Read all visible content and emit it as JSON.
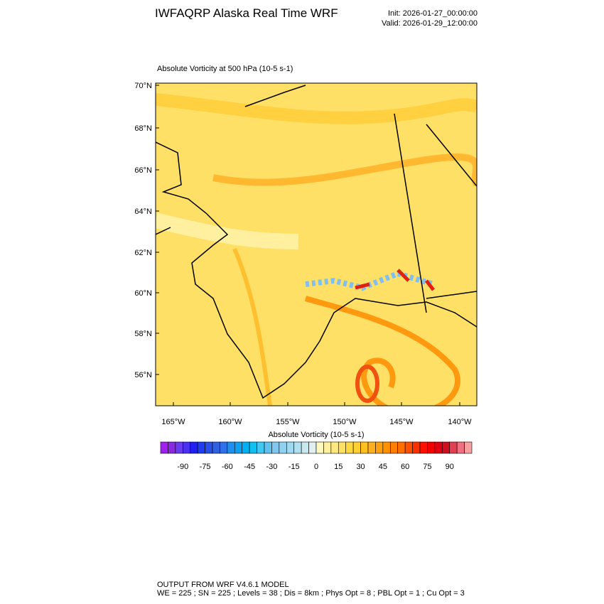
{
  "header": {
    "title": "IWFAQRP Alaska Real Time WRF",
    "init": "Init: 2026-01-27_00:00:00",
    "valid": "Valid: 2026-01-29_12:00:00"
  },
  "map": {
    "title": "Absolute Vorticity at 500 hPa   (10-5 s-1)",
    "lat_labels": [
      "70°N",
      "68°N",
      "66°N",
      "64°N",
      "62°N",
      "60°N",
      "58°N",
      "56°N"
    ],
    "lon_labels": [
      "165°W",
      "160°W",
      "155°W",
      "150°W",
      "145°W",
      "140°W"
    ]
  },
  "colorbar": {
    "title": "Absolute Vorticity  (10-5 s-1)",
    "labels": [
      -90,
      -75,
      -60,
      -45,
      -30,
      -15,
      0,
      15,
      30,
      45,
      60,
      75,
      90
    ],
    "colors": [
      "#a020f0",
      "#8a2be2",
      "#6a3cf0",
      "#4a30f0",
      "#2020f0",
      "#1e3cf0",
      "#2850e8",
      "#3060e0",
      "#3070e8",
      "#2090f0",
      "#10a0f0",
      "#00b0f0",
      "#10c0f0",
      "#40c8f0",
      "#60c0f0",
      "#80c8f0",
      "#90d0f0",
      "#a0d8f0",
      "#b0e0f0",
      "#c8e8f0",
      "#e0f0f0",
      "#fff8c0",
      "#fff0a0",
      "#ffe880",
      "#ffe060",
      "#ffd840",
      "#ffd030",
      "#ffc020",
      "#ffb020",
      "#ffa010",
      "#ff9000",
      "#ff8000",
      "#ff7000",
      "#ff5000",
      "#ff3000",
      "#ff1000",
      "#f00000",
      "#e00010",
      "#d01020",
      "#e04050",
      "#f07080",
      "#f8a0a0"
    ]
  },
  "footer": {
    "line1": "OUTPUT FROM WRF V4.6.1 MODEL",
    "line2": "WE = 225 ; SN = 225 ; Levels = 38 ; Dis = 8km ; Phys Opt = 8 ; PBL Opt = 1 ; Cu Opt = 3"
  }
}
